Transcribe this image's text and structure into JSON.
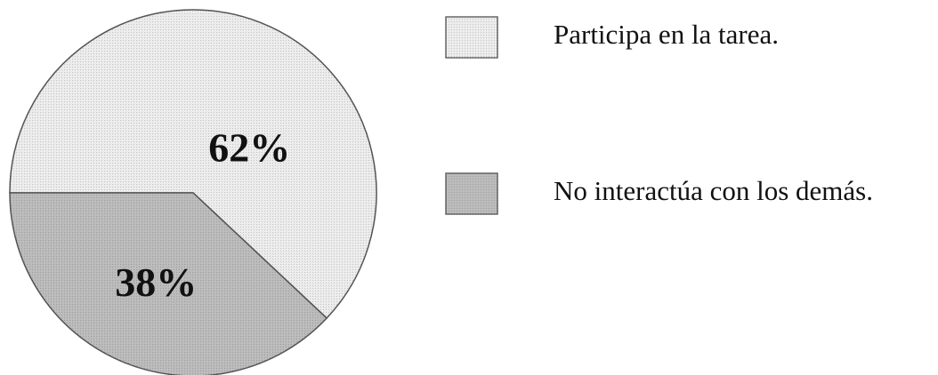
{
  "chart_data": {
    "type": "pie",
    "categories": [
      "Participa en la tarea.",
      "No interactúa con los demás."
    ],
    "values": [
      62,
      38
    ],
    "value_labels": [
      "62%",
      "38%"
    ],
    "colors": [
      "#ececec",
      "#bcbcbc"
    ],
    "legend": "right"
  }
}
